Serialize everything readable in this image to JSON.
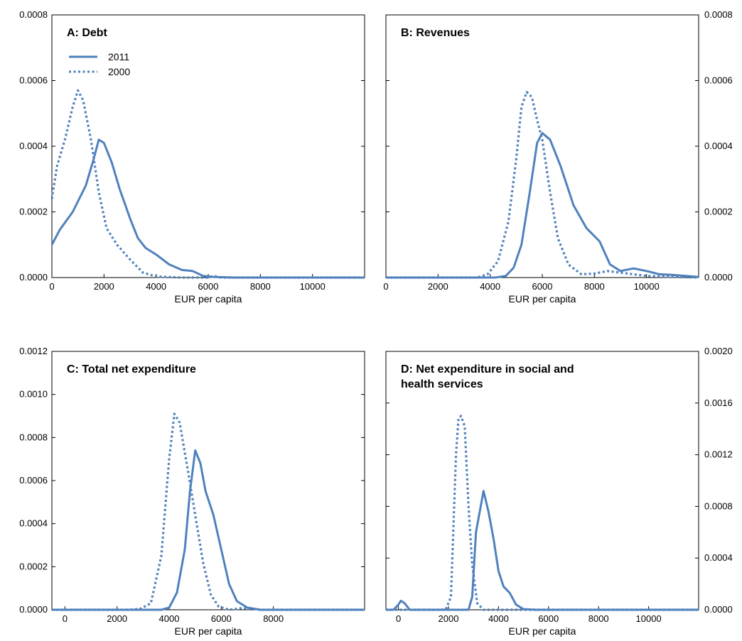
{
  "colors": {
    "series": "#4f81bd",
    "frame": "#000000",
    "background": "#ffffff"
  },
  "chart_data": [
    {
      "type": "line",
      "title": "A: Debt",
      "xlabel": "EUR per capita",
      "ylabel": "",
      "xlim": [
        0,
        12000
      ],
      "ylim": [
        0,
        0.0008
      ],
      "x_ticks": [
        0,
        2000,
        4000,
        6000,
        8000,
        10000
      ],
      "y_ticks": [
        0.0,
        0.0002,
        0.0004,
        0.0006,
        0.0008
      ],
      "y_tick_labels": [
        "0.0000",
        "0.0002",
        "0.0004",
        "0.0006",
        "0.0008"
      ],
      "y_axis_side": "left",
      "legend": {
        "position": "top-left",
        "entries": [
          "2011",
          "2000"
        ]
      },
      "series": [
        {
          "name": "2011",
          "style": "solid",
          "points": [
            [
              0,
              0.0001
            ],
            [
              300,
              0.000145
            ],
            [
              800,
              0.0002
            ],
            [
              1300,
              0.00028
            ],
            [
              1600,
              0.00036
            ],
            [
              1800,
              0.00042
            ],
            [
              2000,
              0.00041
            ],
            [
              2300,
              0.00035
            ],
            [
              2600,
              0.00027
            ],
            [
              3000,
              0.00018
            ],
            [
              3300,
              0.00012
            ],
            [
              3600,
              9e-05
            ],
            [
              4000,
              7e-05
            ],
            [
              4500,
              4e-05
            ],
            [
              5000,
              2.3e-05
            ],
            [
              5400,
              2e-05
            ],
            [
              5800,
              5e-06
            ],
            [
              6200,
              2e-06
            ],
            [
              7000,
              0.0
            ],
            [
              12000,
              0.0
            ]
          ]
        },
        {
          "name": "2000",
          "style": "dotted",
          "points": [
            [
              0,
              0.00024
            ],
            [
              200,
              0.00034
            ],
            [
              500,
              0.00042
            ],
            [
              800,
              0.00052
            ],
            [
              1000,
              0.00057
            ],
            [
              1200,
              0.00054
            ],
            [
              1500,
              0.00042
            ],
            [
              1800,
              0.00026
            ],
            [
              2100,
              0.00015
            ],
            [
              2500,
              0.0001
            ],
            [
              3000,
              5.5e-05
            ],
            [
              3500,
              1.5e-05
            ],
            [
              4000,
              3e-06
            ],
            [
              5000,
              0.0
            ],
            [
              6000,
              0.0
            ],
            [
              6200,
              5e-06
            ],
            [
              6500,
              0.0
            ],
            [
              12000,
              0.0
            ]
          ]
        }
      ]
    },
    {
      "type": "line",
      "title": "B: Revenues",
      "xlabel": "EUR per capita",
      "ylabel": "",
      "xlim": [
        0,
        12000
      ],
      "ylim": [
        0,
        0.0008
      ],
      "x_ticks": [
        0,
        2000,
        4000,
        6000,
        8000,
        10000
      ],
      "y_ticks": [
        0.0,
        0.0002,
        0.0004,
        0.0006,
        0.0008
      ],
      "y_tick_labels": [
        "0.0000",
        "0.0002",
        "0.0004",
        "0.0006",
        "0.0008"
      ],
      "y_axis_side": "right",
      "series": [
        {
          "name": "2011",
          "style": "solid",
          "points": [
            [
              0,
              0.0
            ],
            [
              4200,
              0.0
            ],
            [
              4600,
              5e-06
            ],
            [
              4900,
              3e-05
            ],
            [
              5200,
              0.0001
            ],
            [
              5500,
              0.00025
            ],
            [
              5800,
              0.00041
            ],
            [
              6000,
              0.00044
            ],
            [
              6300,
              0.00042
            ],
            [
              6700,
              0.00034
            ],
            [
              7200,
              0.00022
            ],
            [
              7700,
              0.00015
            ],
            [
              8200,
              0.00011
            ],
            [
              8600,
              4e-05
            ],
            [
              9000,
              2e-05
            ],
            [
              9500,
              2.8e-05
            ],
            [
              10000,
              2e-05
            ],
            [
              10500,
              1e-05
            ],
            [
              11000,
              8e-06
            ],
            [
              12000,
              2e-06
            ]
          ]
        },
        {
          "name": "2000",
          "style": "dotted",
          "points": [
            [
              0,
              0.0
            ],
            [
              3500,
              0.0
            ],
            [
              3900,
              1e-05
            ],
            [
              4300,
              5e-05
            ],
            [
              4700,
              0.00017
            ],
            [
              5000,
              0.00036
            ],
            [
              5200,
              0.00052
            ],
            [
              5400,
              0.000565
            ],
            [
              5600,
              0.00055
            ],
            [
              5800,
              0.00048
            ],
            [
              6000,
              0.00042
            ],
            [
              6300,
              0.00026
            ],
            [
              6600,
              0.00012
            ],
            [
              7000,
              4e-05
            ],
            [
              7500,
              1e-05
            ],
            [
              8000,
              1.2e-05
            ],
            [
              8500,
              2e-05
            ],
            [
              9000,
              1.5e-05
            ],
            [
              10000,
              5e-06
            ],
            [
              11000,
              2e-06
            ],
            [
              12000,
              0.0
            ]
          ]
        }
      ]
    },
    {
      "type": "line",
      "title": "C: Total net expenditure",
      "xlabel": "EUR per capita",
      "ylabel": "",
      "xlim": [
        -500,
        11500
      ],
      "ylim": [
        0,
        0.0012
      ],
      "x_ticks": [
        0,
        2000,
        4000,
        6000,
        8000
      ],
      "y_ticks": [
        0.0,
        0.0002,
        0.0004,
        0.0006,
        0.0008,
        0.001,
        0.0012
      ],
      "y_tick_labels": [
        "0.0000",
        "0.0002",
        "0.0004",
        "0.0006",
        "0.0008",
        "0.0010",
        "0.0012"
      ],
      "y_axis_side": "left",
      "series": [
        {
          "name": "2011",
          "style": "solid",
          "points": [
            [
              -500,
              0.0
            ],
            [
              3700,
              0.0
            ],
            [
              4000,
              1e-05
            ],
            [
              4300,
              8e-05
            ],
            [
              4600,
              0.00028
            ],
            [
              4800,
              0.00055
            ],
            [
              5000,
              0.00074
            ],
            [
              5200,
              0.00068
            ],
            [
              5400,
              0.00055
            ],
            [
              5700,
              0.00044
            ],
            [
              6000,
              0.00028
            ],
            [
              6300,
              0.00012
            ],
            [
              6600,
              4e-05
            ],
            [
              7000,
              1e-05
            ],
            [
              7500,
              0.0
            ],
            [
              11500,
              0.0
            ]
          ]
        },
        {
          "name": "2000",
          "style": "dotted",
          "points": [
            [
              -500,
              0.0
            ],
            [
              2500,
              0.0
            ],
            [
              2900,
              5e-06
            ],
            [
              3300,
              3e-05
            ],
            [
              3700,
              0.00025
            ],
            [
              4000,
              0.0007
            ],
            [
              4200,
              0.00091
            ],
            [
              4400,
              0.00087
            ],
            [
              4700,
              0.00066
            ],
            [
              5000,
              0.00044
            ],
            [
              5300,
              0.00022
            ],
            [
              5600,
              7e-05
            ],
            [
              5900,
              1.5e-05
            ],
            [
              6300,
              0.0
            ],
            [
              6800,
              8e-06
            ],
            [
              7500,
              0.0
            ],
            [
              11500,
              0.0
            ]
          ]
        }
      ]
    },
    {
      "type": "line",
      "title": "D: Net expenditure in social and health services",
      "xlabel": "EUR per capita",
      "ylabel": "",
      "xlim": [
        -500,
        12000
      ],
      "ylim": [
        0,
        0.002
      ],
      "x_ticks": [
        0,
        2000,
        4000,
        6000,
        8000,
        10000
      ],
      "y_ticks": [
        0.0,
        0.0004,
        0.0008,
        0.0012,
        0.0016,
        0.002
      ],
      "y_tick_labels": [
        "0.0000",
        "0.0004",
        "0.0008",
        "0.0012",
        "0.0016",
        "0.0020"
      ],
      "y_axis_side": "right",
      "series": [
        {
          "name": "2011",
          "style": "solid",
          "points": [
            [
              -500,
              0.0
            ],
            [
              -200,
              0.0
            ],
            [
              0,
              4e-05
            ],
            [
              100,
              7e-05
            ],
            [
              250,
              5e-05
            ],
            [
              450,
              0.0
            ],
            [
              2800,
              0.0
            ],
            [
              2950,
              0.0001
            ],
            [
              3100,
              0.0006
            ],
            [
              3400,
              0.00092
            ],
            [
              3600,
              0.00076
            ],
            [
              3800,
              0.00055
            ],
            [
              4000,
              0.0003
            ],
            [
              4200,
              0.00018
            ],
            [
              4450,
              0.00013
            ],
            [
              4700,
              4e-05
            ],
            [
              5000,
              5e-06
            ],
            [
              5500,
              0.0
            ],
            [
              12000,
              0.0
            ]
          ]
        },
        {
          "name": "2000",
          "style": "dotted",
          "points": [
            [
              -500,
              0.0
            ],
            [
              1700,
              0.0
            ],
            [
              1900,
              5e-06
            ],
            [
              2100,
              0.0001
            ],
            [
              2300,
              0.0012
            ],
            [
              2400,
              0.00148
            ],
            [
              2500,
              0.0015
            ],
            [
              2650,
              0.00142
            ],
            [
              2800,
              0.0008
            ],
            [
              2950,
              0.00035
            ],
            [
              3150,
              5e-05
            ],
            [
              3400,
              0.0
            ],
            [
              12000,
              0.0
            ]
          ]
        }
      ]
    }
  ]
}
